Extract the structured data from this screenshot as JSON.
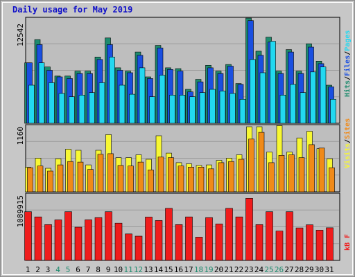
{
  "chart_data": {
    "type": "bar",
    "title": "Daily usage for May 2019",
    "categories": [
      "1",
      "2",
      "3",
      "4",
      "5",
      "6",
      "7",
      "8",
      "9",
      "10",
      "11",
      "12",
      "13",
      "14",
      "15",
      "16",
      "17",
      "18",
      "19",
      "20",
      "21",
      "22",
      "23",
      "24",
      "25",
      "26",
      "27",
      "28",
      "29",
      "30",
      "31"
    ],
    "weekend_days": [
      "4",
      "5",
      "11",
      "12",
      "18",
      "19",
      "25",
      "26"
    ],
    "colors": {
      "hits": "#1E8B6E",
      "files": "#1A4FE0",
      "pages": "#22D8F0",
      "visits": "#F7F733",
      "sites": "#F08A18",
      "kbf": "#EF1C1C",
      "weekday_label": "#000000",
      "weekend_label": "#1E8B6E"
    },
    "panels": [
      {
        "name": "hits-files-pages",
        "ymax_label": "12542",
        "legend": [
          {
            "text": "Hits",
            "color": "#1E8B6E"
          },
          {
            "text": "/",
            "color": "#000000"
          },
          {
            "text": "Files",
            "color": "#1A4FE0"
          },
          {
            "text": "/",
            "color": "#000000"
          },
          {
            "text": "Pages",
            "color": "#22D8F0"
          }
        ],
        "ymax": 12542,
        "series": [
          {
            "name": "Hits",
            "values": [
              7300,
              10100,
              6800,
              5700,
              5700,
              6300,
              6300,
              8000,
              10300,
              6700,
              6300,
              8600,
              5600,
              9400,
              6700,
              6600,
              4100,
              5300,
              7000,
              6300,
              7100,
              4800,
              12700,
              8700,
              10400,
              6300,
              8900,
              6300,
              9600,
              7500,
              4600
            ]
          },
          {
            "name": "Files",
            "values": [
              7300,
              9500,
              6400,
              5600,
              5400,
              6000,
              6000,
              7700,
              9500,
              6400,
              6100,
              8200,
              5400,
              9100,
              6500,
              6300,
              3800,
              5000,
              6700,
              6000,
              6900,
              4700,
              12400,
              8200,
              9800,
              6000,
              8600,
              6000,
              9200,
              7200,
              4400
            ]
          },
          {
            "name": "Pages",
            "values": [
              4600,
              7300,
              4900,
              3600,
              3200,
              3400,
              3700,
              4900,
              8000,
              4600,
              3500,
              6700,
              3200,
              5800,
              3400,
              3400,
              3200,
              3700,
              4100,
              3900,
              3600,
              2900,
              7700,
              6100,
              9900,
              3400,
              4700,
              3700,
              6200,
              6800,
              2900
            ]
          }
        ]
      },
      {
        "name": "visits-sites",
        "ymax_label": "1160",
        "legend": [
          {
            "text": "Visits",
            "color": "#F7F733"
          },
          {
            "text": "/",
            "color": "#000000"
          },
          {
            "text": "Sites",
            "color": "#F08A18"
          }
        ],
        "ymax": 1160,
        "series": [
          {
            "name": "Visits",
            "values": [
              440,
              600,
              420,
              590,
              760,
              740,
              480,
              740,
              1020,
              610,
              610,
              660,
              580,
              1000,
              690,
              520,
              500,
              470,
              480,
              560,
              600,
              660,
              1160,
              1160,
              710,
              1180,
              710,
              960,
              1080,
              770,
              590
            ]
          },
          {
            "name": "Sites",
            "values": [
              430,
              460,
              370,
              480,
              540,
              530,
              400,
              670,
              680,
              470,
              460,
              530,
              390,
              620,
              610,
              460,
              440,
              440,
              410,
              520,
              540,
              580,
              940,
              1060,
              520,
              650,
              660,
              610,
              840,
              780,
              430
            ]
          }
        ]
      },
      {
        "name": "kbf",
        "ymax_label": "1089915",
        "legend": [
          {
            "text": "kB F",
            "color": "#EF1C1C"
          }
        ],
        "ymax": 1089915,
        "series": [
          {
            "name": "kB F",
            "values": [
              815000,
              728000,
              600000,
              678000,
              815000,
              556000,
              680000,
              716000,
              815000,
              624000,
              443000,
              406000,
              726000,
              668000,
              872000,
              600000,
              728000,
              390000,
              716000,
              610000,
              872000,
              728000,
              1040000,
              599000,
              815000,
              492000,
              815000,
              544000,
              596000,
              506000,
              546000
            ]
          }
        ]
      }
    ]
  }
}
